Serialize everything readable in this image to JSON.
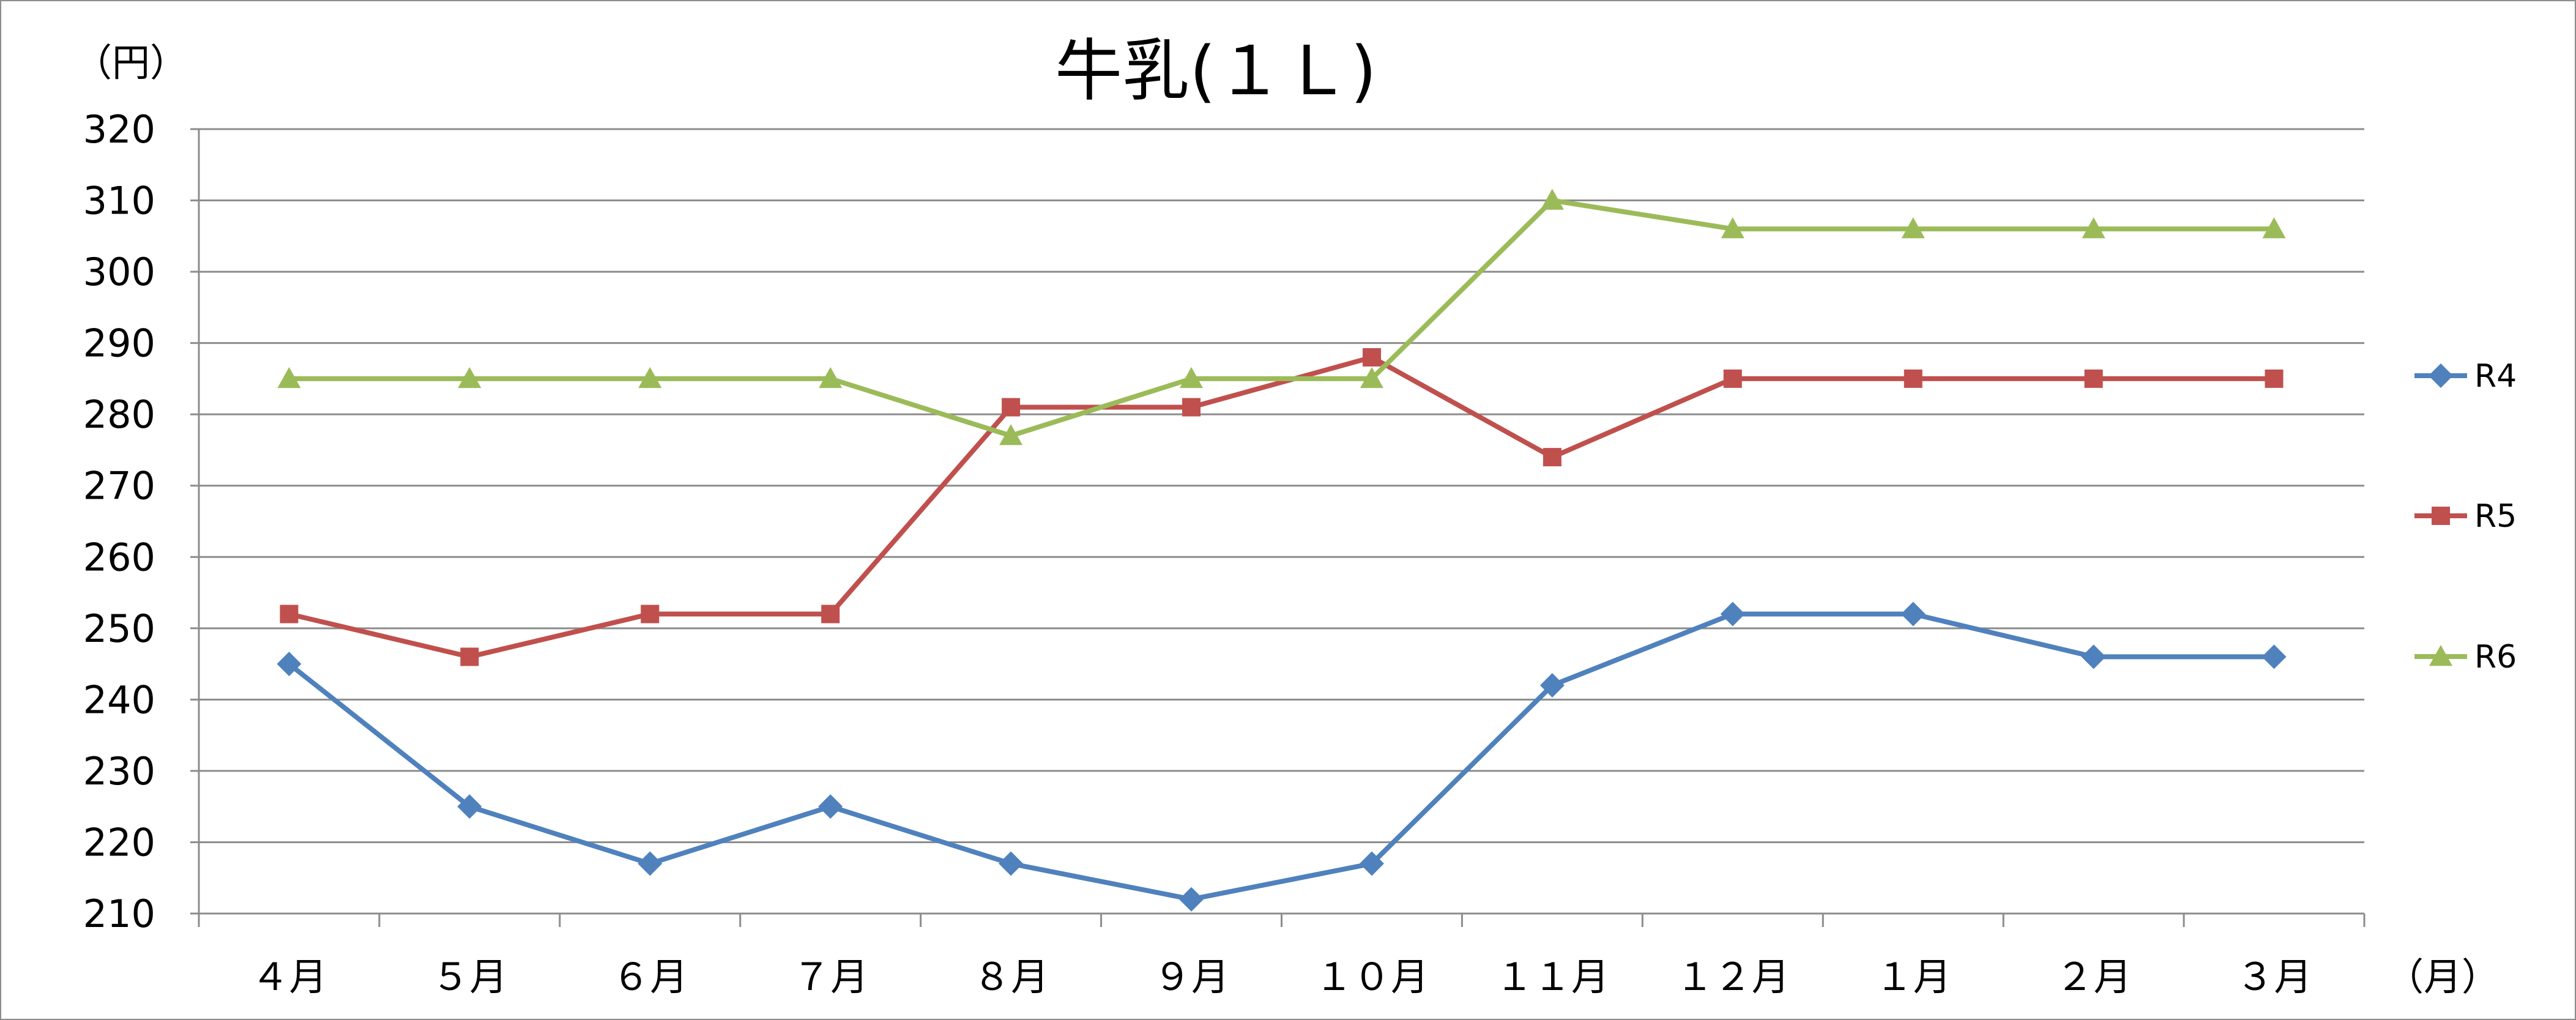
{
  "chart_data": {
    "type": "line",
    "title": "牛乳(１Ｌ)",
    "ylabel": "（円）",
    "xlabel": "（月）",
    "categories": [
      "４月",
      "５月",
      "６月",
      "７月",
      "８月",
      "９月",
      "１０月",
      "１１月",
      "１２月",
      "１月",
      "２月",
      "３月"
    ],
    "ylim": [
      210,
      320
    ],
    "yticks": [
      "210",
      "220",
      "230",
      "240",
      "250",
      "260",
      "270",
      "280",
      "290",
      "300",
      "310",
      "320"
    ],
    "grid": true,
    "legend_position": "right",
    "series": [
      {
        "name": "R4",
        "color": "#4f81bd",
        "marker": "diamond",
        "values": [
          245,
          225,
          217,
          225,
          217,
          212,
          217,
          242,
          252,
          252,
          246,
          246
        ]
      },
      {
        "name": "R5",
        "color": "#c0504d",
        "marker": "square",
        "values": [
          252,
          246,
          252,
          252,
          281,
          281,
          288,
          274,
          285,
          285,
          285,
          285
        ]
      },
      {
        "name": "R6",
        "color": "#9bbb59",
        "marker": "triangle",
        "values": [
          285,
          285,
          285,
          285,
          277,
          285,
          285,
          310,
          306,
          306,
          306,
          306
        ]
      }
    ]
  }
}
